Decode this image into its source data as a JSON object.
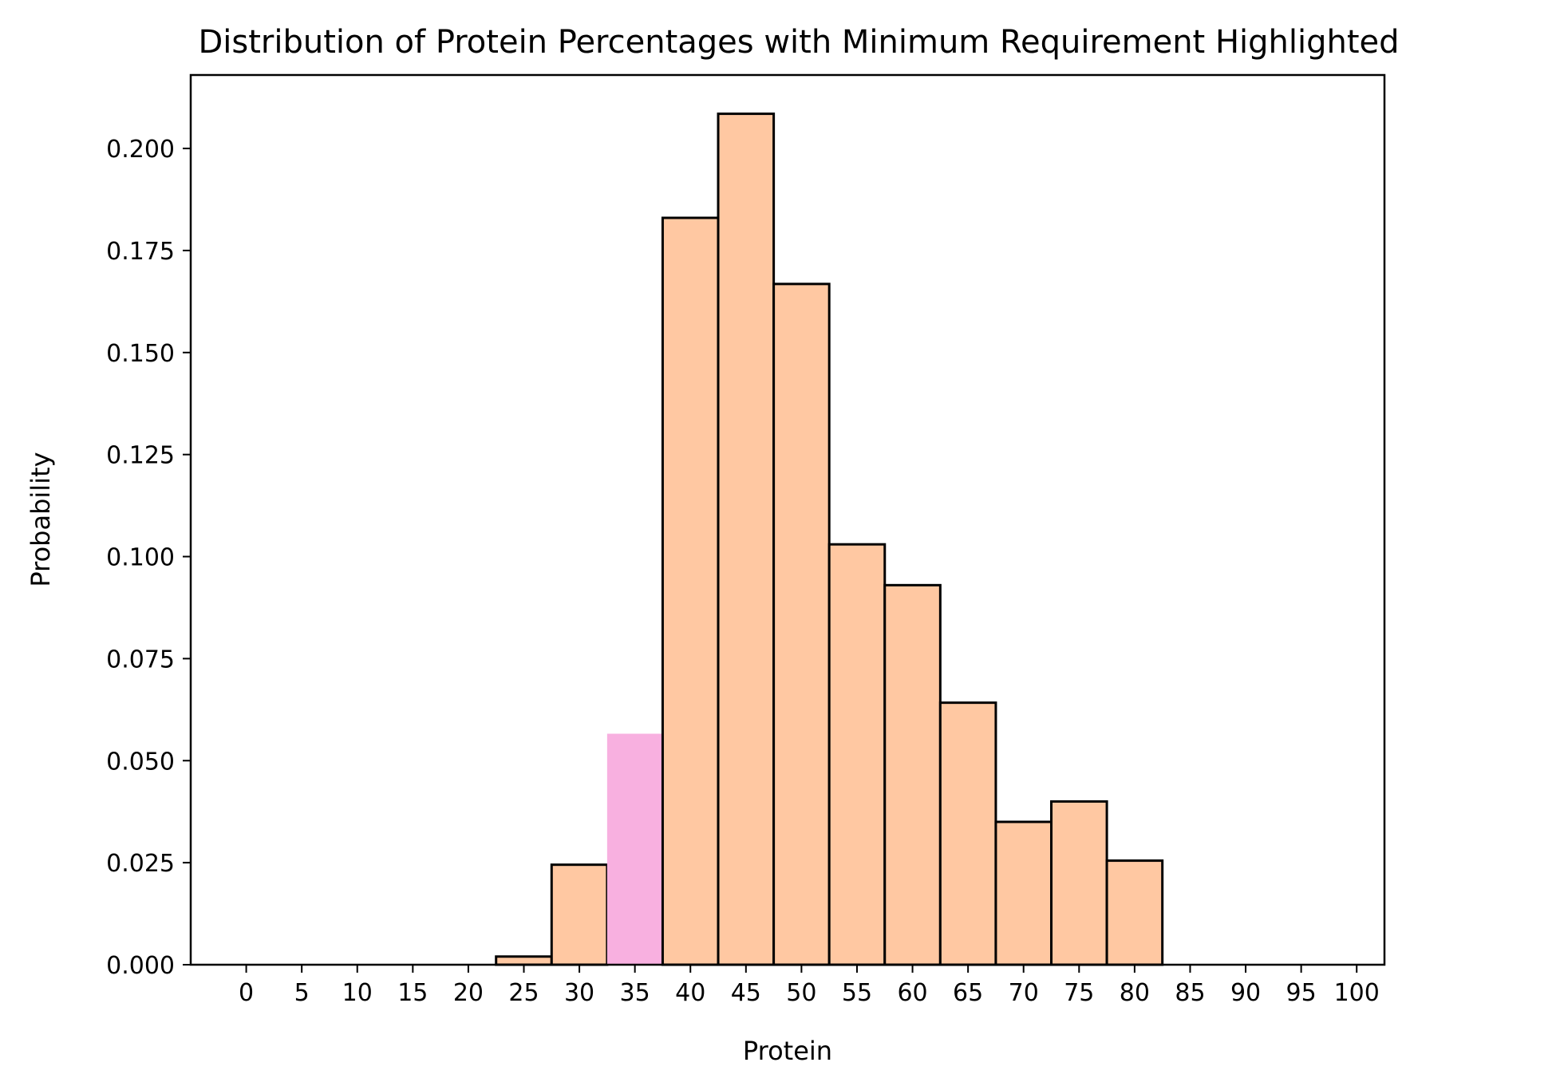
{
  "chart_data": {
    "type": "bar",
    "title": "Distribution of Protein Percentages with Minimum Requirement Highlighted",
    "xlabel": "Protein",
    "ylabel": "Probability",
    "xlim": [
      -5,
      102.5
    ],
    "ylim": [
      0,
      0.218
    ],
    "grid": false,
    "x_ticks": [
      0,
      5,
      10,
      15,
      20,
      25,
      30,
      35,
      40,
      45,
      50,
      55,
      60,
      65,
      70,
      75,
      80,
      85,
      90,
      95,
      100
    ],
    "y_ticks": [
      "0.000",
      "0.025",
      "0.050",
      "0.075",
      "0.100",
      "0.125",
      "0.150",
      "0.175",
      "0.200"
    ],
    "bin_width": 5,
    "bins": [
      {
        "center": 0,
        "value": 0.0,
        "highlighted": false
      },
      {
        "center": 5,
        "value": 0.0,
        "highlighted": false
      },
      {
        "center": 10,
        "value": 0.0,
        "highlighted": false
      },
      {
        "center": 15,
        "value": 0.0,
        "highlighted": false
      },
      {
        "center": 20,
        "value": 0.0,
        "highlighted": false
      },
      {
        "center": 25,
        "value": 0.002,
        "highlighted": false
      },
      {
        "center": 30,
        "value": 0.0245,
        "highlighted": false
      },
      {
        "center": 35,
        "value": 0.0566,
        "highlighted": true
      },
      {
        "center": 40,
        "value": 0.183,
        "highlighted": false
      },
      {
        "center": 45,
        "value": 0.2085,
        "highlighted": false
      },
      {
        "center": 50,
        "value": 0.1668,
        "highlighted": false
      },
      {
        "center": 55,
        "value": 0.103,
        "highlighted": false
      },
      {
        "center": 60,
        "value": 0.093,
        "highlighted": false
      },
      {
        "center": 65,
        "value": 0.0642,
        "highlighted": false
      },
      {
        "center": 70,
        "value": 0.035,
        "highlighted": false
      },
      {
        "center": 75,
        "value": 0.04,
        "highlighted": false
      },
      {
        "center": 80,
        "value": 0.0255,
        "highlighted": false
      },
      {
        "center": 85,
        "value": 0.0,
        "highlighted": false
      },
      {
        "center": 90,
        "value": 0.0,
        "highlighted": false
      },
      {
        "center": 95,
        "value": 0.0,
        "highlighted": false
      }
    ],
    "colors": {
      "bar_fill": "#FFC8A2",
      "highlight_fill": "#F8B0E0",
      "bar_edge": "#000000",
      "axes": "#000000"
    }
  }
}
